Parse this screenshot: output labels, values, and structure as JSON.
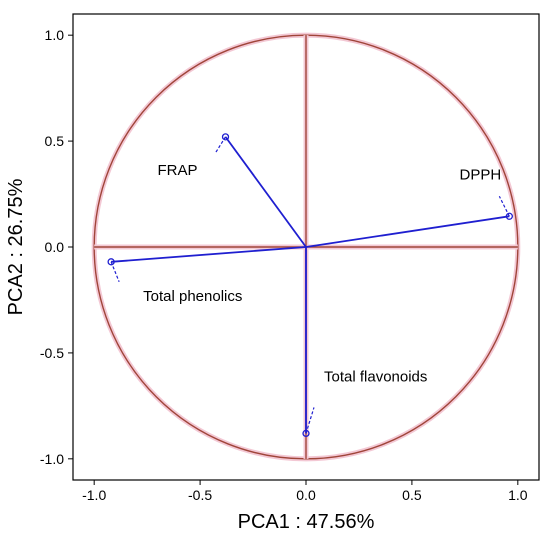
{
  "chart_data": {
    "type": "scatter",
    "title": "",
    "xlabel": "PCA1 : 47.56%",
    "ylabel": "PCA2 : 26.75%",
    "xlim": [
      -1.1,
      1.1
    ],
    "ylim": [
      -1.1,
      1.1
    ],
    "xticks": [
      -1.0,
      -0.5,
      0.0,
      0.5,
      1.0
    ],
    "xtick_labels": [
      "-1.0",
      "-0.5",
      "0.0",
      "0.5",
      "1.0"
    ],
    "yticks": [
      1.0,
      0.5,
      0.0,
      -0.5,
      -1.0
    ],
    "ytick_labels": [
      "1.0",
      "0.5",
      "0.0",
      "-0.5",
      "-1.0"
    ],
    "grid": false,
    "unit_circle": true,
    "points": [
      {
        "label": "FRAP",
        "x": -0.38,
        "y": 0.52
      },
      {
        "label": "DPPH",
        "x": 0.96,
        "y": 0.145
      },
      {
        "label": "Total phenolics",
        "x": -0.92,
        "y": -0.07
      },
      {
        "label": "Total flavonoids",
        "x": 0.0,
        "y": -0.88
      }
    ],
    "colors": {
      "vector": "#1f1fd0",
      "circle": "#a0453a",
      "circle_halo": "#f3c8d4",
      "frame": "#000000"
    }
  }
}
